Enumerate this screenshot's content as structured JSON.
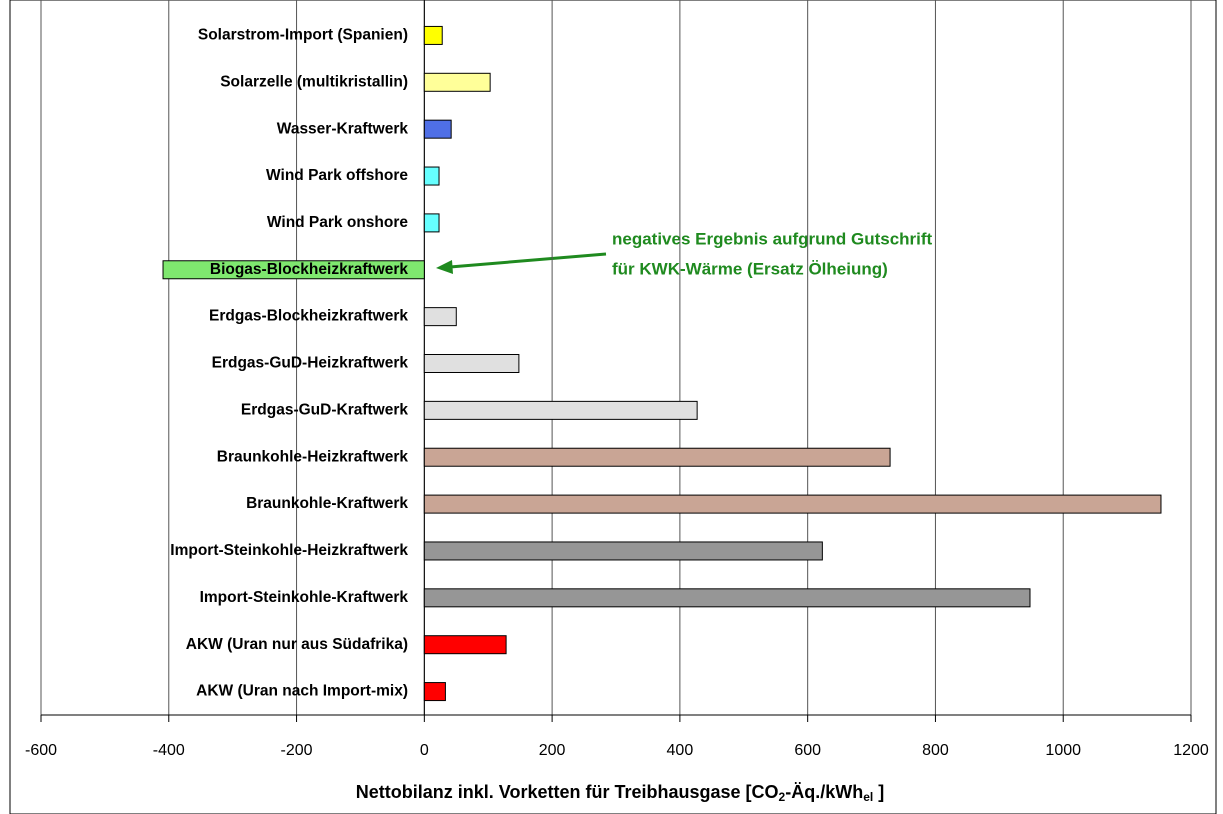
{
  "chart_data": {
    "type": "barh",
    "categories": [
      "Solarstrom-Import (Spanien)",
      "Solarzelle (multikristallin)",
      "Wasser-Kraftwerk",
      "Wind Park offshore",
      "Wind Park onshore",
      "Biogas-Blockheizkraftwerk",
      "Erdgas-Blockheizkraftwerk",
      "Erdgas-GuD-Heizkraftwerk",
      "Erdgas-GuD-Kraftwerk",
      "Braunkohle-Heizkraftwerk",
      "Braunkohle-Kraftwerk",
      "Import-Steinkohle-Heizkraftwerk",
      "Import-Steinkohle-Kraftwerk",
      "AKW (Uran nur aus Südafrika)",
      "AKW (Uran nach Import-mix)"
    ],
    "values": [
      28,
      103,
      42,
      23,
      23,
      -409,
      50,
      148,
      427,
      729,
      1153,
      623,
      948,
      128,
      33
    ],
    "colors": [
      "#ffff00",
      "#ffff99",
      "#4f6fe6",
      "#66ffff",
      "#66ffff",
      "#7fe86f",
      "#e0e0e0",
      "#e0e0e0",
      "#e0e0e0",
      "#c9a595",
      "#c9a595",
      "#969696",
      "#969696",
      "#ff0000",
      "#ff0000"
    ],
    "xlim": [
      -600,
      1200
    ],
    "xticks": [
      -600,
      -400,
      -200,
      0,
      200,
      400,
      600,
      800,
      1000,
      1200
    ],
    "x_label_parts": [
      "Nettobilanz inkl. Vorketten für Treibhausgase [CO",
      "2",
      "-Äq./kWh",
      "el",
      " ]"
    ],
    "annotation": [
      "negatives Ergebnis aufgrund Gutschrift",
      "für KWK-Wärme (Ersatz Ölheiung)"
    ],
    "grid": true
  }
}
